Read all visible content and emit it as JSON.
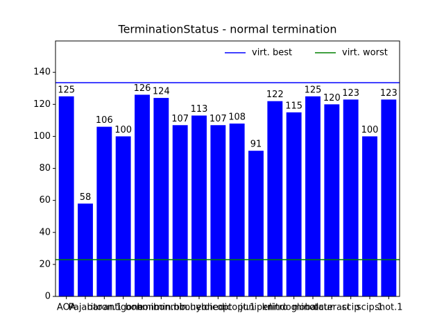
{
  "chart_data": {
    "type": "bar",
    "title": "TerminationStatus - normal termination",
    "categories": [
      "AOA",
      "Pajarito",
      "baron.1",
      "antigone",
      "bonmin",
      "bonmin.bb",
      "bonmin.hyb",
      "couenne",
      "dicopt",
      "dicopt.1",
      "juniper",
      "knitro",
      "lindoglobal",
      "minotaur",
      "octeract",
      "scip",
      "scip.1",
      "shot.1"
    ],
    "values": [
      125,
      58,
      106,
      100,
      126,
      124,
      107,
      113,
      107,
      108,
      91,
      122,
      115,
      125,
      120,
      123,
      100,
      123
    ],
    "color": "#0000ff",
    "lines": [
      {
        "name": "virt. best",
        "value": 133.5,
        "color": "#0000ff"
      },
      {
        "name": "virt. worst",
        "value": 23,
        "color": "#008000"
      }
    ],
    "legend": "upper right",
    "ylim": [
      0,
      159.6
    ],
    "yticks": [
      0,
      20,
      40,
      60,
      80,
      100,
      120,
      140
    ]
  }
}
